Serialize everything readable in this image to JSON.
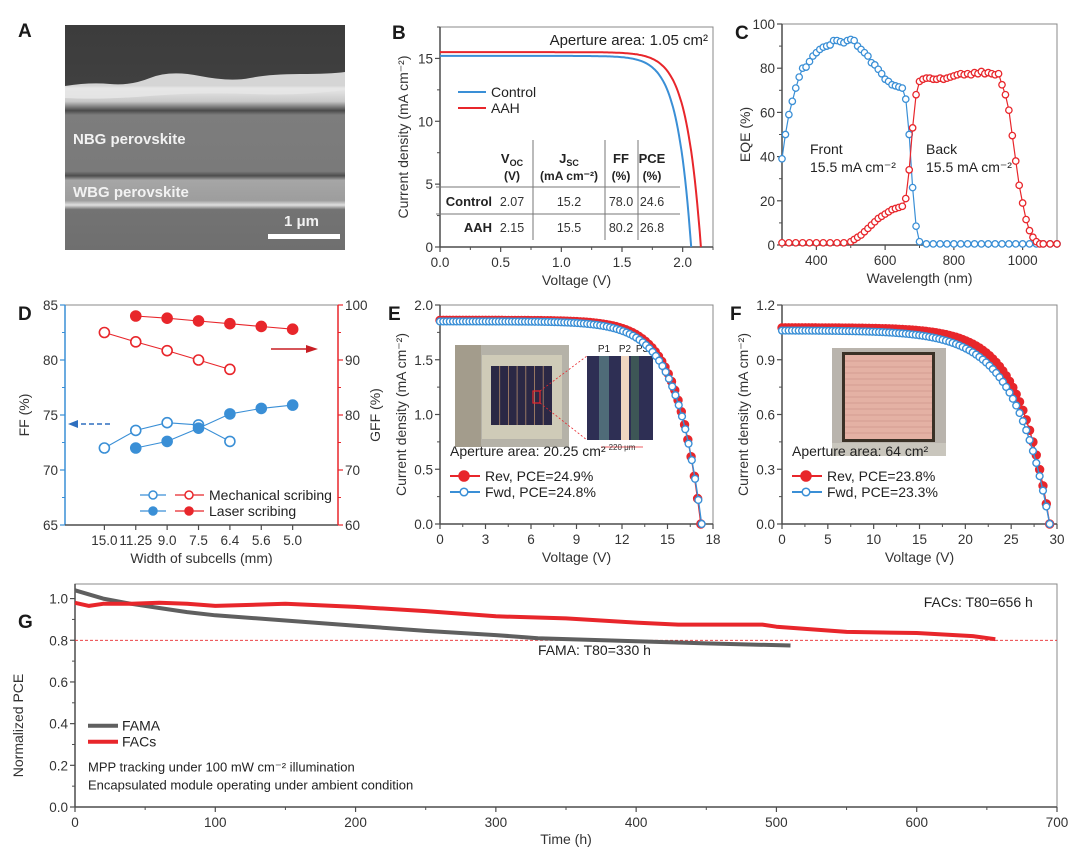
{
  "figure": {
    "panel_labels": [
      "A",
      "B",
      "C",
      "D",
      "E",
      "F",
      "G"
    ]
  },
  "panelA": {
    "type": "image",
    "label": "A",
    "layer_labels": [
      "NBG perovskite",
      "WBG perovskite"
    ],
    "scale_bar": "1 μm"
  },
  "chart_data": [
    {
      "panel": "B",
      "type": "line",
      "title": "",
      "xlabel": "Voltage (V)",
      "ylabel": "Current density (mA cm⁻²)",
      "xlim": [
        0,
        2.25
      ],
      "ylim": [
        0,
        17.5
      ],
      "xticks": [
        "0.0",
        "0.5",
        "1.0",
        "1.5",
        "2.0"
      ],
      "xtick_values": [
        0,
        0.5,
        1.0,
        1.5,
        2.0
      ],
      "yticks": [
        "0",
        "5",
        "10",
        "15"
      ],
      "ytick_values": [
        0,
        5,
        10,
        15
      ],
      "annotation": "Aperture area: 1.05 cm²",
      "legend": [
        "Control",
        "AAH"
      ],
      "colors": {
        "Control": "#3a8fd6",
        "AAH": "#e8262b"
      },
      "series": [
        {
          "name": "Control",
          "jsc": 15.2,
          "voc": 2.07,
          "ff": 78.0,
          "pce": 24.6
        },
        {
          "name": "AAH",
          "jsc": 15.5,
          "voc": 2.15,
          "ff": 80.2,
          "pce": 26.8
        }
      ],
      "table": {
        "headers": [
          {
            "main": "V",
            "sub": "OC",
            "unit": "(V)"
          },
          {
            "main": "J",
            "sub": "SC",
            "unit": "(mA cm⁻²)"
          },
          {
            "main": "FF",
            "sub": "",
            "unit": "(%)"
          },
          {
            "main": "PCE",
            "sub": "",
            "unit": "(%)"
          }
        ],
        "rows": [
          {
            "label": "Control",
            "values": [
              "2.07",
              "15.2",
              "78.0",
              "24.6"
            ]
          },
          {
            "label": "AAH",
            "values": [
              "2.15",
              "15.5",
              "80.2",
              "26.8"
            ]
          }
        ]
      }
    },
    {
      "panel": "C",
      "type": "line",
      "xlabel": "Wavelength (nm)",
      "ylabel": "EQE (%)",
      "xlim": [
        300,
        1100
      ],
      "ylim": [
        0,
        100
      ],
      "xticks": [
        "400",
        "600",
        "800",
        "1000"
      ],
      "xtick_values": [
        400,
        600,
        800,
        1000
      ],
      "yticks": [
        "0",
        "20",
        "40",
        "60",
        "80",
        "100"
      ],
      "ytick_values": [
        0,
        20,
        40,
        60,
        80,
        100
      ],
      "annotations": [
        {
          "line1": "Front",
          "line2": "15.5 mA cm⁻²"
        },
        {
          "line1": "Back",
          "line2": "15.5 mA cm⁻²"
        }
      ],
      "colors": {
        "Front": "#3a8fd6",
        "Back": "#e8262b"
      },
      "series": [
        {
          "name": "Front",
          "x": [
            300,
            310,
            320,
            330,
            340,
            350,
            360,
            370,
            380,
            390,
            400,
            410,
            420,
            430,
            440,
            450,
            460,
            470,
            480,
            490,
            500,
            510,
            520,
            530,
            540,
            550,
            560,
            570,
            580,
            590,
            600,
            610,
            620,
            630,
            640,
            650,
            660,
            670,
            680,
            690,
            700,
            720,
            740,
            760,
            780,
            800,
            820,
            840,
            860,
            880,
            900,
            920,
            940,
            960,
            980,
            1000,
            1020,
            1040,
            1060,
            1080,
            1100
          ],
          "y": [
            39,
            50,
            59,
            65,
            71,
            76,
            80,
            80.5,
            83,
            85.5,
            87,
            88.5,
            89.5,
            90,
            90.5,
            92.5,
            92.5,
            92,
            91.5,
            92.5,
            93,
            92.5,
            90,
            88.5,
            87,
            85.5,
            82.5,
            81.5,
            79.5,
            77.5,
            75,
            74,
            72.5,
            72,
            71.5,
            71,
            66,
            50,
            26,
            8.5,
            1.5,
            0.5,
            0.5,
            0.5,
            0.5,
            0.5,
            0.5,
            0.5,
            0.5,
            0.5,
            0.5,
            0.5,
            0.5,
            0.5,
            0.5,
            0.5,
            0.5,
            0.5,
            0.5,
            0.5,
            0.5
          ]
        },
        {
          "name": "Back",
          "x": [
            300,
            320,
            340,
            360,
            380,
            400,
            420,
            440,
            460,
            480,
            500,
            510,
            520,
            530,
            540,
            550,
            560,
            570,
            580,
            590,
            600,
            610,
            620,
            630,
            640,
            650,
            660,
            670,
            680,
            690,
            700,
            710,
            720,
            730,
            740,
            750,
            760,
            770,
            780,
            790,
            800,
            810,
            820,
            830,
            840,
            850,
            860,
            870,
            880,
            890,
            900,
            910,
            920,
            930,
            940,
            950,
            960,
            970,
            980,
            990,
            1000,
            1010,
            1020,
            1030,
            1040,
            1050,
            1060,
            1080,
            1100
          ],
          "y": [
            1,
            1,
            1,
            1,
            1,
            1,
            1,
            1,
            1,
            1,
            1.5,
            2.5,
            3.5,
            4.5,
            6,
            7.5,
            9,
            10.5,
            12,
            13,
            14,
            15,
            16,
            16.5,
            17,
            17.5,
            21,
            34,
            53,
            68,
            74,
            75,
            75.5,
            75.5,
            75,
            75,
            75.5,
            75,
            75.5,
            76,
            76.5,
            77,
            77.5,
            77,
            77.5,
            77,
            78,
            77.5,
            78.5,
            77.5,
            78,
            77.5,
            77,
            77.5,
            72.5,
            68,
            61,
            49.5,
            38,
            27,
            19,
            11.5,
            6.5,
            3.5,
            1.5,
            0.5,
            0.5,
            0.5,
            0.5
          ]
        }
      ]
    },
    {
      "panel": "D",
      "type": "line",
      "xlabel": "Width of subcells (mm)",
      "ylabel_left": "FF (%)",
      "ylabel_right": "GFF (%)",
      "categories": [
        "15.0",
        "11.25",
        "9.0",
        "7.5",
        "6.4",
        "5.6",
        "5.0"
      ],
      "ylim_left": [
        65,
        85
      ],
      "ylim_right": [
        60,
        100
      ],
      "yticks_left": [
        "65",
        "70",
        "75",
        "80",
        "85"
      ],
      "ytick_values_left": [
        65,
        70,
        75,
        80,
        85
      ],
      "yticks_right": [
        "60",
        "70",
        "80",
        "90",
        "100"
      ],
      "ytick_values_right": [
        60,
        70,
        80,
        90,
        100
      ],
      "colors": {
        "left": "#3a8fd6",
        "right": "#e8262b"
      },
      "legend": [
        "Mechanical scribing",
        "Laser scribing"
      ],
      "series": [
        {
          "name": "FF Mechanical scribing",
          "axis": "left",
          "marker": "open",
          "values": [
            72.0,
            73.6,
            74.3,
            74.1,
            72.6,
            null,
            null
          ]
        },
        {
          "name": "FF Laser scribing",
          "axis": "left",
          "marker": "filled",
          "values": [
            null,
            72.0,
            72.6,
            73.8,
            75.1,
            75.6,
            75.9
          ]
        },
        {
          "name": "GFF Mechanical scribing",
          "axis": "right",
          "marker": "open",
          "values": [
            95.0,
            93.3,
            91.7,
            90.0,
            88.3,
            null,
            null
          ]
        },
        {
          "name": "GFF Laser scribing",
          "axis": "right",
          "marker": "filled",
          "values": [
            null,
            98.0,
            97.6,
            97.1,
            96.6,
            96.1,
            95.6
          ]
        }
      ]
    },
    {
      "panel": "E",
      "type": "scatter",
      "xlabel": "Voltage (V)",
      "ylabel": "Current density (mA cm⁻²)",
      "xlim": [
        0,
        18
      ],
      "ylim": [
        0,
        2.0
      ],
      "xticks": [
        "0",
        "3",
        "6",
        "9",
        "12",
        "15",
        "18"
      ],
      "xtick_values": [
        0,
        3,
        6,
        9,
        12,
        15,
        18
      ],
      "yticks": [
        "0.0",
        "0.5",
        "1.0",
        "1.5",
        "2.0"
      ],
      "ytick_values": [
        0,
        0.5,
        1.0,
        1.5,
        2.0
      ],
      "annotation": "Aperture area: 20.25 cm²",
      "inset_labels": [
        "P1",
        "P2",
        "P3"
      ],
      "inset_scale": "220 μm",
      "colors": {
        "Rev": "#e8262b",
        "Fwd": "#3a8fd6"
      },
      "series": [
        {
          "name": "Rev, PCE=24.9%",
          "jsc": 1.86,
          "voc": 17.2,
          "knee": 0.83,
          "marker": "filled"
        },
        {
          "name": "Fwd, PCE=24.8%",
          "jsc": 1.85,
          "voc": 17.25,
          "knee": 0.82,
          "marker": "open"
        }
      ]
    },
    {
      "panel": "F",
      "type": "scatter",
      "xlabel": "Voltage (V)",
      "ylabel": "Current density (mA cm⁻²)",
      "xlim": [
        0,
        30
      ],
      "ylim": [
        0,
        1.2
      ],
      "xticks": [
        "0",
        "5",
        "10",
        "15",
        "20",
        "25",
        "30"
      ],
      "xtick_values": [
        0,
        5,
        10,
        15,
        20,
        25,
        30
      ],
      "yticks": [
        "0.0",
        "0.3",
        "0.6",
        "0.9",
        "1.2"
      ],
      "ytick_values": [
        0,
        0.3,
        0.6,
        0.9,
        1.2
      ],
      "annotation": "Aperture area: 64 cm²",
      "colors": {
        "Rev": "#e8262b",
        "Fwd": "#3a8fd6"
      },
      "series": [
        {
          "name": "Rev, PCE=23.8%",
          "jsc": 1.075,
          "voc": 29.2,
          "knee": 0.79,
          "marker": "filled"
        },
        {
          "name": "Fwd, PCE=23.3%",
          "jsc": 1.06,
          "voc": 29.2,
          "knee": 0.76,
          "marker": "open"
        }
      ]
    },
    {
      "panel": "G",
      "type": "line",
      "xlabel": "Time (h)",
      "ylabel": "Normalized PCE",
      "xlim": [
        0,
        700
      ],
      "ylim": [
        0,
        1.07
      ],
      "xticks": [
        "0",
        "100",
        "200",
        "300",
        "400",
        "500",
        "600",
        "700"
      ],
      "xtick_values": [
        0,
        100,
        200,
        300,
        400,
        500,
        600,
        700
      ],
      "yticks": [
        "0.0",
        "0.2",
        "0.4",
        "0.6",
        "0.8",
        "1.0"
      ],
      "ytick_values": [
        0,
        0.2,
        0.4,
        0.6,
        0.8,
        1.0
      ],
      "reference_line": 0.8,
      "legend": [
        "FAMA",
        "FACs"
      ],
      "colors": {
        "FAMA": "#5f5f5f",
        "FACs": "#e8262b"
      },
      "annotations": [
        "FAMA: T80=330 h",
        "FACs: T80=656 h"
      ],
      "notes": [
        "MPP tracking under 100 mW cm⁻² illumination",
        "Encapsulated module operating under ambient condition"
      ],
      "series": [
        {
          "name": "FAMA",
          "x": [
            0,
            20,
            40,
            60,
            80,
            100,
            150,
            200,
            250,
            300,
            330,
            400,
            450,
            510
          ],
          "y": [
            1.04,
            1.0,
            0.975,
            0.955,
            0.935,
            0.92,
            0.895,
            0.87,
            0.845,
            0.825,
            0.81,
            0.795,
            0.785,
            0.775
          ]
        },
        {
          "name": "FACs",
          "x": [
            0,
            10,
            20,
            40,
            60,
            80,
            100,
            150,
            200,
            250,
            300,
            350,
            400,
            430,
            450,
            490,
            500,
            550,
            600,
            640,
            656
          ],
          "y": [
            0.98,
            0.965,
            0.975,
            0.975,
            0.98,
            0.975,
            0.965,
            0.975,
            0.96,
            0.94,
            0.915,
            0.905,
            0.885,
            0.875,
            0.875,
            0.875,
            0.865,
            0.84,
            0.835,
            0.82,
            0.805
          ]
        }
      ]
    }
  ]
}
